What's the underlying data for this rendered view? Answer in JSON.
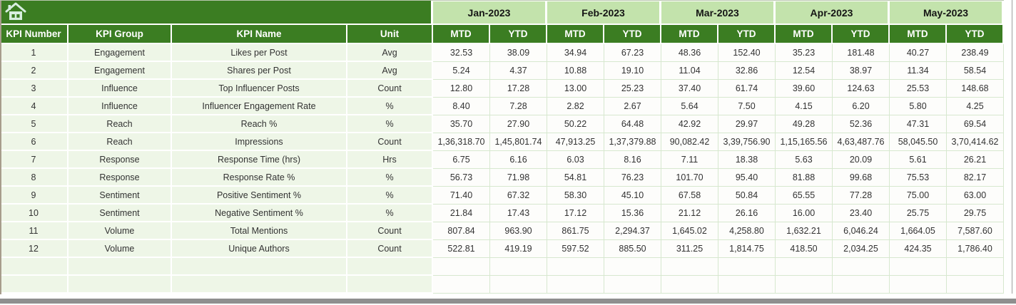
{
  "sheet": {
    "home_icon": "home-icon",
    "left_headers": [
      "KPI Number",
      "KPI Group",
      "KPI Name",
      "Unit"
    ],
    "months": [
      "Jan-2023",
      "Feb-2023",
      "Mar-2023",
      "Apr-2023",
      "May-2023"
    ],
    "period_headers": [
      "MTD",
      "YTD"
    ],
    "rows": [
      {
        "kpi_number": "1",
        "kpi_group": "Engagement",
        "kpi_name": "Likes per Post",
        "unit": "Avg",
        "values": [
          "32.53",
          "38.09",
          "34.94",
          "67.23",
          "48.36",
          "152.40",
          "35.23",
          "181.48",
          "40.27",
          "238.49"
        ]
      },
      {
        "kpi_number": "2",
        "kpi_group": "Engagement",
        "kpi_name": "Shares per Post",
        "unit": "Avg",
        "values": [
          "5.24",
          "4.37",
          "10.88",
          "19.10",
          "11.04",
          "32.86",
          "12.54",
          "38.97",
          "11.34",
          "58.54"
        ]
      },
      {
        "kpi_number": "3",
        "kpi_group": "Influence",
        "kpi_name": "Top Influencer Posts",
        "unit": "Count",
        "values": [
          "12.80",
          "17.28",
          "13.00",
          "25.23",
          "37.40",
          "61.74",
          "39.60",
          "124.63",
          "25.53",
          "148.68"
        ]
      },
      {
        "kpi_number": "4",
        "kpi_group": "Influence",
        "kpi_name": "Influencer Engagement Rate",
        "unit": "%",
        "values": [
          "8.40",
          "7.28",
          "2.82",
          "2.67",
          "5.64",
          "7.50",
          "4.15",
          "6.20",
          "5.80",
          "4.25"
        ]
      },
      {
        "kpi_number": "5",
        "kpi_group": "Reach",
        "kpi_name": "Reach %",
        "unit": "%",
        "values": [
          "35.70",
          "27.90",
          "50.22",
          "64.48",
          "42.92",
          "29.97",
          "49.28",
          "52.36",
          "47.31",
          "69.54"
        ]
      },
      {
        "kpi_number": "6",
        "kpi_group": "Reach",
        "kpi_name": "Impressions",
        "unit": "Count",
        "values": [
          "1,36,318.70",
          "1,45,801.74",
          "47,913.25",
          "1,37,379.88",
          "90,082.42",
          "3,39,756.90",
          "1,15,165.56",
          "4,63,487.76",
          "58,045.50",
          "3,70,414.62"
        ]
      },
      {
        "kpi_number": "7",
        "kpi_group": "Response",
        "kpi_name": "Response Time (hrs)",
        "unit": "Hrs",
        "values": [
          "6.75",
          "6.16",
          "6.03",
          "8.16",
          "7.11",
          "18.38",
          "5.63",
          "20.09",
          "5.61",
          "26.21"
        ]
      },
      {
        "kpi_number": "8",
        "kpi_group": "Response",
        "kpi_name": "Response Rate %",
        "unit": "%",
        "values": [
          "56.73",
          "71.98",
          "54.81",
          "76.23",
          "101.70",
          "95.40",
          "81.88",
          "99.68",
          "75.53",
          "82.17"
        ]
      },
      {
        "kpi_number": "9",
        "kpi_group": "Sentiment",
        "kpi_name": "Positive Sentiment %",
        "unit": "%",
        "values": [
          "71.40",
          "67.32",
          "58.30",
          "45.10",
          "67.58",
          "50.84",
          "65.55",
          "77.28",
          "75.00",
          "63.00"
        ]
      },
      {
        "kpi_number": "10",
        "kpi_group": "Sentiment",
        "kpi_name": "Negative Sentiment %",
        "unit": "%",
        "values": [
          "21.84",
          "17.43",
          "17.12",
          "15.36",
          "21.12",
          "26.16",
          "16.00",
          "23.40",
          "25.75",
          "29.75"
        ]
      },
      {
        "kpi_number": "11",
        "kpi_group": "Volume",
        "kpi_name": "Total Mentions",
        "unit": "Count",
        "values": [
          "807.84",
          "963.90",
          "861.75",
          "2,294.37",
          "1,645.02",
          "4,258.80",
          "1,632.21",
          "6,046.24",
          "1,664.05",
          "7,587.60"
        ]
      },
      {
        "kpi_number": "12",
        "kpi_group": "Volume",
        "kpi_name": "Unique Authors",
        "unit": "Count",
        "values": [
          "522.81",
          "419.19",
          "597.52",
          "885.50",
          "311.25",
          "1,814.75",
          "418.50",
          "2,034.25",
          "424.35",
          "1,786.40"
        ]
      }
    ],
    "empty_row_count": 2,
    "colors": {
      "header_dark_green": "#3b7d22",
      "month_light_green": "#c3e3ac",
      "left_cell_green": "#eef6e7",
      "data_cell_white": "#fdfdfb",
      "grid_line_green": "#d7e8cf",
      "home_icon_pale": "#d8eee0",
      "bottom_bar_gray": "#8f8f8f"
    }
  }
}
